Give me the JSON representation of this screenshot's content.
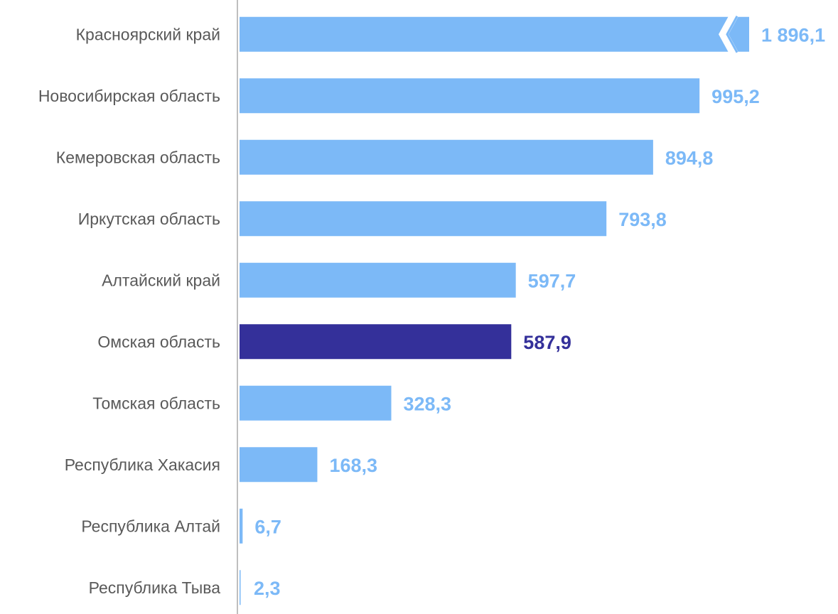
{
  "chart_data": {
    "type": "bar",
    "orientation": "horizontal",
    "categories": [
      "Красноярский край",
      "Новосибирская область",
      "Кемеровская область",
      "Иркутская область",
      "Алтайский край",
      "Омская область",
      "Томская область",
      "Республика Хакасия",
      "Республика Алтай",
      "Республика Тыва"
    ],
    "values": [
      1896.1,
      995.2,
      894.8,
      793.8,
      597.7,
      587.9,
      328.3,
      168.3,
      6.7,
      2.3
    ],
    "value_labels": [
      "1 896,1",
      "995,2",
      "894,8",
      "793,8",
      "597,7",
      "587,9",
      "328,3",
      "168,3",
      "6,7",
      "2,3"
    ],
    "axis_break_on": "Красноярский край",
    "highlighted": "Омская область",
    "colors": {
      "bar": "#7cb9f7",
      "highlight": "#34309a",
      "axis": "#bfbfbf"
    },
    "legend": "none",
    "grid": false
  }
}
